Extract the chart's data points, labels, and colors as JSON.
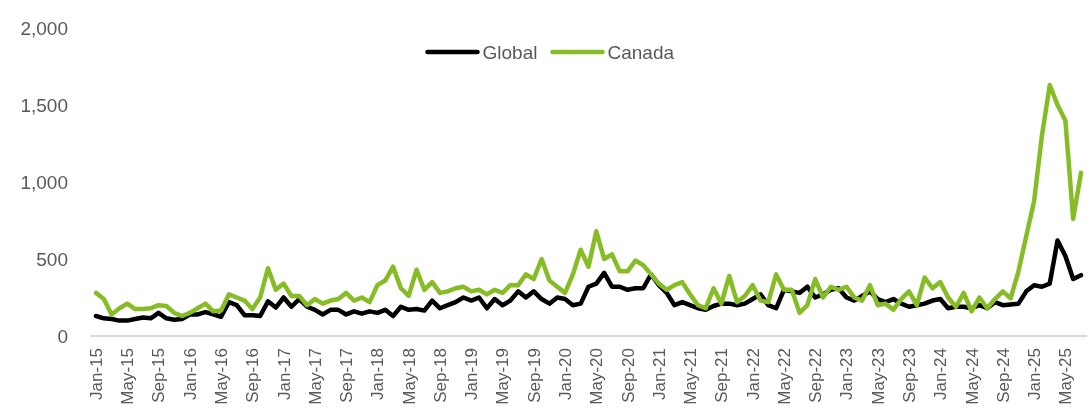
{
  "chart_data": {
    "type": "line",
    "categories": [
      "Jan-15",
      null,
      null,
      null,
      "May-15",
      null,
      null,
      null,
      "Sep-15",
      null,
      null,
      null,
      "Jan-16",
      null,
      null,
      null,
      "May-16",
      null,
      null,
      null,
      "Sep-16",
      null,
      null,
      null,
      "Jan-17",
      null,
      null,
      null,
      "May-17",
      null,
      null,
      null,
      "Sep-17",
      null,
      null,
      null,
      "Jan-18",
      null,
      null,
      null,
      "May-18",
      null,
      null,
      null,
      "Sep-18",
      null,
      null,
      null,
      "Jan-19",
      null,
      null,
      null,
      "May-19",
      null,
      null,
      null,
      "Sep-19",
      null,
      null,
      null,
      "Jan-20",
      null,
      null,
      null,
      "May-20",
      null,
      null,
      null,
      "Sep-20",
      null,
      null,
      null,
      "Jan-21",
      null,
      null,
      null,
      "May-21",
      null,
      null,
      null,
      "Sep-21",
      null,
      null,
      null,
      "Jan-22",
      null,
      null,
      null,
      "May-22",
      null,
      null,
      null,
      "Sep-22",
      null,
      null,
      null,
      "Jan-23",
      null,
      null,
      null,
      "May-23",
      null,
      null,
      null,
      "Sep-23",
      null,
      null,
      null,
      "Jan-24",
      null,
      null,
      null,
      "May-24",
      null,
      null,
      null,
      "Sep-24",
      null,
      null,
      null,
      "Jan-25",
      null,
      null,
      null,
      "May-25",
      null,
      null
    ],
    "series": [
      {
        "name": "Global",
        "color": "#000000",
        "values": [
          130,
          115,
          110,
          100,
          100,
          110,
          120,
          115,
          150,
          115,
          105,
          110,
          140,
          140,
          155,
          140,
          125,
          220,
          200,
          135,
          135,
          130,
          225,
          185,
          250,
          190,
          240,
          190,
          170,
          140,
          170,
          170,
          140,
          160,
          145,
          160,
          150,
          170,
          130,
          190,
          170,
          175,
          165,
          230,
          180,
          200,
          220,
          250,
          230,
          250,
          180,
          240,
          200,
          230,
          290,
          250,
          290,
          240,
          210,
          250,
          240,
          200,
          210,
          320,
          340,
          410,
          320,
          320,
          300,
          310,
          310,
          400,
          330,
          280,
          200,
          220,
          200,
          180,
          170,
          195,
          210,
          210,
          200,
          210,
          240,
          270,
          200,
          180,
          300,
          290,
          280,
          320,
          250,
          270,
          300,
          310,
          250,
          230,
          260,
          290,
          240,
          220,
          240,
          210,
          190,
          200,
          210,
          230,
          240,
          180,
          190,
          190,
          180,
          200,
          180,
          220,
          200,
          205,
          210,
          290,
          330,
          320,
          340,
          620,
          520,
          370,
          395
        ]
      },
      {
        "name": "Canada",
        "color": "#86bc25",
        "values": [
          280,
          240,
          140,
          180,
          210,
          175,
          175,
          180,
          200,
          195,
          150,
          130,
          150,
          180,
          210,
          160,
          165,
          270,
          250,
          230,
          175,
          250,
          440,
          300,
          340,
          260,
          260,
          200,
          240,
          210,
          230,
          240,
          280,
          230,
          250,
          220,
          330,
          360,
          450,
          310,
          260,
          430,
          300,
          350,
          280,
          290,
          310,
          320,
          290,
          300,
          270,
          300,
          280,
          330,
          330,
          400,
          370,
          500,
          360,
          320,
          280,
          400,
          560,
          450,
          680,
          500,
          530,
          420,
          420,
          490,
          460,
          400,
          340,
          300,
          330,
          350,
          270,
          200,
          180,
          310,
          210,
          390,
          220,
          260,
          330,
          230,
          220,
          400,
          300,
          300,
          150,
          200,
          370,
          250,
          320,
          300,
          320,
          250,
          230,
          330,
          200,
          210,
          170,
          240,
          290,
          200,
          380,
          310,
          350,
          250,
          190,
          280,
          160,
          250,
          180,
          240,
          290,
          245,
          420,
          650,
          875,
          1300,
          1630,
          1500,
          1400,
          760,
          1060
        ]
      }
    ],
    "ylim": [
      0,
      2000
    ],
    "yticks": [
      0,
      500,
      {
        "value": 1000,
        "label": "1,000"
      },
      {
        "value": 1500,
        "label": "1,500"
      },
      {
        "value": 2000,
        "label": "2,000"
      }
    ],
    "grid": false,
    "legend": "top",
    "marker": "none",
    "line_style": "solid"
  }
}
